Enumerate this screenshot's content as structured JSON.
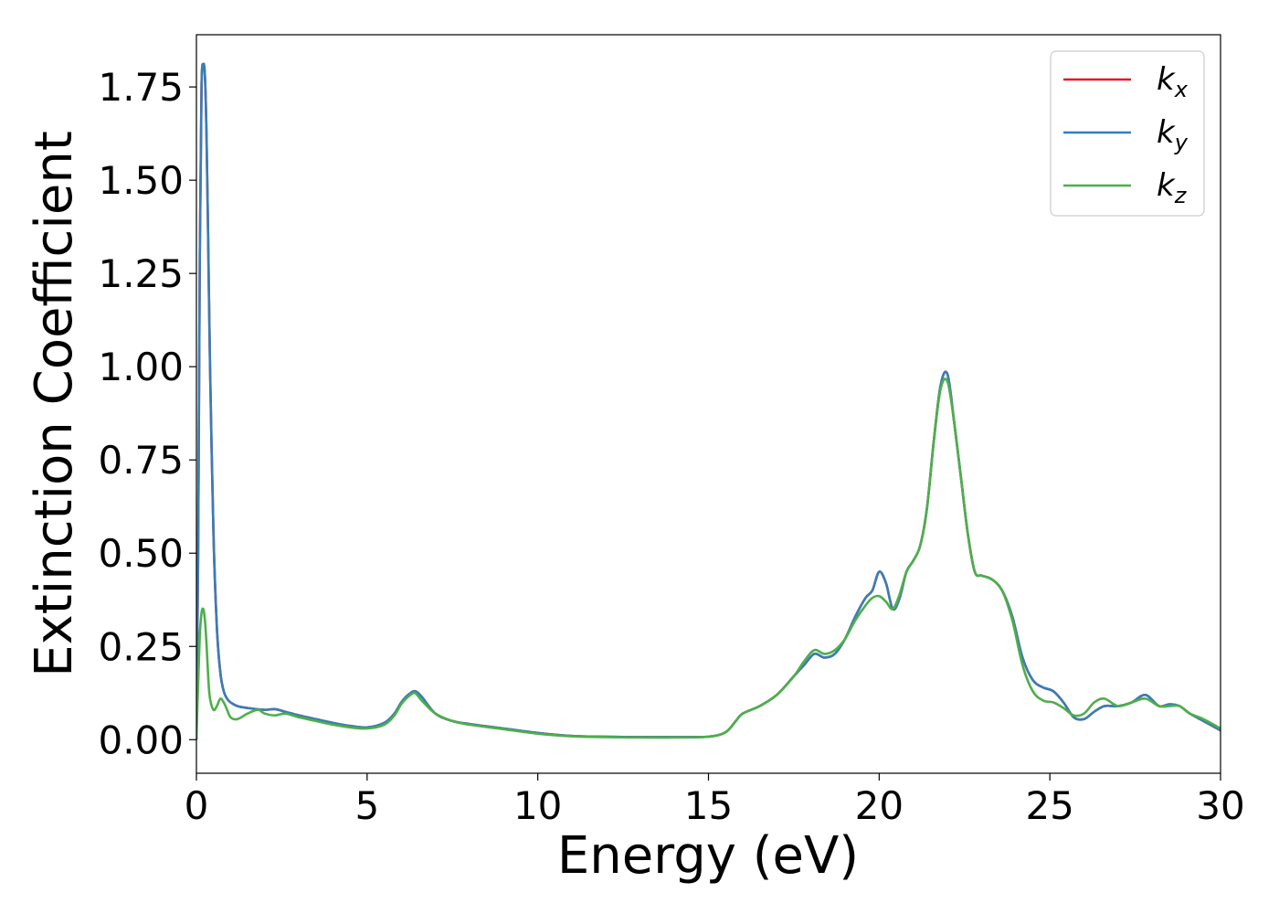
{
  "chart_data": {
    "type": "line",
    "title": "",
    "xlabel": "Energy (eV)",
    "ylabel": "Extinction Coefficient",
    "xlim": [
      0,
      30
    ],
    "ylim": [
      -0.09,
      1.89
    ],
    "xticks": [
      0,
      5,
      10,
      15,
      20,
      25,
      30
    ],
    "xtick_labels": [
      "0",
      "5",
      "10",
      "15",
      "20",
      "25",
      "30"
    ],
    "yticks": [
      0,
      0.25,
      0.5,
      0.75,
      1.0,
      1.25,
      1.5,
      1.75
    ],
    "ytick_labels": [
      "0.00",
      "0.25",
      "0.50",
      "0.75",
      "1.00",
      "1.25",
      "1.50",
      "1.75"
    ],
    "grid": false,
    "legend": {
      "placement": "top-right"
    },
    "series": [
      {
        "name": "k_x",
        "legend_base": "k",
        "legend_sub": "x",
        "color": "#e41a1c",
        "x": [
          0,
          0.05,
          0.1,
          0.15,
          0.2,
          0.25,
          0.3,
          0.35,
          0.4,
          0.5,
          0.6,
          0.7,
          0.8,
          0.9,
          1.0,
          1.2,
          1.5,
          2.0,
          2.3,
          2.6,
          3.0,
          3.5,
          4.0,
          4.5,
          5.0,
          5.5,
          5.8,
          6.0,
          6.2,
          6.4,
          6.6,
          7.0,
          7.5,
          8.0,
          9.0,
          10.0,
          11.0,
          12.0,
          13.0,
          14.0,
          15.0,
          15.5,
          15.8,
          16.0,
          16.5,
          17.0,
          17.5,
          17.8,
          18.1,
          18.4,
          18.7,
          19.0,
          19.3,
          19.6,
          19.8,
          20.0,
          20.2,
          20.4,
          20.6,
          20.8,
          21.0,
          21.2,
          21.4,
          21.6,
          21.8,
          22.0,
          22.2,
          22.4,
          22.6,
          22.8,
          23.0,
          23.3,
          23.6,
          23.9,
          24.2,
          24.5,
          24.8,
          25.1,
          25.4,
          25.7,
          26.0,
          26.3,
          26.6,
          27.0,
          27.4,
          27.8,
          28.2,
          28.5,
          28.8,
          29.1,
          29.5,
          30.0
        ],
        "y": [
          0.0,
          0.5,
          1.3,
          1.75,
          1.8,
          1.78,
          1.6,
          1.3,
          1.0,
          0.55,
          0.3,
          0.18,
          0.13,
          0.11,
          0.1,
          0.09,
          0.085,
          0.08,
          0.082,
          0.075,
          0.065,
          0.055,
          0.045,
          0.037,
          0.033,
          0.045,
          0.07,
          0.1,
          0.12,
          0.13,
          0.115,
          0.07,
          0.05,
          0.042,
          0.03,
          0.018,
          0.01,
          0.008,
          0.007,
          0.007,
          0.008,
          0.02,
          0.05,
          0.07,
          0.09,
          0.12,
          0.17,
          0.2,
          0.23,
          0.22,
          0.23,
          0.27,
          0.33,
          0.38,
          0.4,
          0.45,
          0.42,
          0.35,
          0.38,
          0.45,
          0.48,
          0.52,
          0.62,
          0.8,
          0.95,
          0.98,
          0.85,
          0.7,
          0.55,
          0.45,
          0.44,
          0.43,
          0.4,
          0.33,
          0.22,
          0.16,
          0.14,
          0.13,
          0.1,
          0.06,
          0.055,
          0.075,
          0.09,
          0.09,
          0.1,
          0.12,
          0.09,
          0.095,
          0.09,
          0.07,
          0.05,
          0.025
        ]
      },
      {
        "name": "k_y",
        "legend_base": "k",
        "legend_sub": "y",
        "color": "#377eb8",
        "x": [
          0,
          0.05,
          0.1,
          0.15,
          0.2,
          0.25,
          0.3,
          0.35,
          0.4,
          0.5,
          0.6,
          0.7,
          0.8,
          0.9,
          1.0,
          1.2,
          1.5,
          2.0,
          2.3,
          2.6,
          3.0,
          3.5,
          4.0,
          4.5,
          5.0,
          5.5,
          5.8,
          6.0,
          6.2,
          6.4,
          6.6,
          7.0,
          7.5,
          8.0,
          9.0,
          10.0,
          11.0,
          12.0,
          13.0,
          14.0,
          15.0,
          15.5,
          15.8,
          16.0,
          16.5,
          17.0,
          17.5,
          17.8,
          18.1,
          18.4,
          18.7,
          19.0,
          19.3,
          19.6,
          19.8,
          20.0,
          20.2,
          20.4,
          20.6,
          20.8,
          21.0,
          21.2,
          21.4,
          21.6,
          21.8,
          22.0,
          22.2,
          22.4,
          22.6,
          22.8,
          23.0,
          23.3,
          23.6,
          23.9,
          24.2,
          24.5,
          24.8,
          25.1,
          25.4,
          25.7,
          26.0,
          26.3,
          26.6,
          27.0,
          27.4,
          27.8,
          28.2,
          28.5,
          28.8,
          29.1,
          29.5,
          30.0
        ],
        "y": [
          0.0,
          0.5,
          1.3,
          1.75,
          1.81,
          1.78,
          1.6,
          1.3,
          1.0,
          0.55,
          0.3,
          0.18,
          0.13,
          0.11,
          0.1,
          0.09,
          0.085,
          0.08,
          0.082,
          0.075,
          0.065,
          0.055,
          0.045,
          0.037,
          0.033,
          0.045,
          0.07,
          0.1,
          0.12,
          0.13,
          0.115,
          0.07,
          0.05,
          0.042,
          0.03,
          0.018,
          0.01,
          0.008,
          0.007,
          0.007,
          0.008,
          0.02,
          0.05,
          0.07,
          0.09,
          0.12,
          0.17,
          0.2,
          0.23,
          0.22,
          0.23,
          0.27,
          0.33,
          0.38,
          0.4,
          0.45,
          0.42,
          0.35,
          0.38,
          0.45,
          0.48,
          0.52,
          0.62,
          0.8,
          0.95,
          0.98,
          0.85,
          0.7,
          0.55,
          0.45,
          0.44,
          0.43,
          0.4,
          0.33,
          0.22,
          0.16,
          0.14,
          0.13,
          0.1,
          0.06,
          0.055,
          0.075,
          0.09,
          0.09,
          0.1,
          0.12,
          0.09,
          0.095,
          0.09,
          0.07,
          0.05,
          0.025
        ]
      },
      {
        "name": "k_z",
        "legend_base": "k",
        "legend_sub": "z",
        "color": "#4daf4a",
        "x": [
          0,
          0.05,
          0.1,
          0.15,
          0.2,
          0.25,
          0.3,
          0.35,
          0.4,
          0.5,
          0.6,
          0.7,
          0.8,
          0.9,
          1.0,
          1.2,
          1.5,
          1.8,
          2.0,
          2.3,
          2.6,
          3.0,
          3.5,
          4.0,
          4.5,
          5.0,
          5.5,
          5.8,
          6.0,
          6.2,
          6.4,
          6.6,
          7.0,
          7.5,
          8.0,
          9.0,
          10.0,
          11.0,
          12.0,
          13.0,
          14.0,
          15.0,
          15.5,
          15.8,
          16.0,
          16.5,
          17.0,
          17.5,
          17.8,
          18.1,
          18.4,
          18.7,
          19.0,
          19.3,
          19.6,
          19.8,
          20.0,
          20.2,
          20.4,
          20.6,
          20.8,
          21.0,
          21.2,
          21.4,
          21.6,
          21.8,
          22.0,
          22.2,
          22.4,
          22.6,
          22.8,
          23.0,
          23.3,
          23.6,
          23.9,
          24.2,
          24.5,
          24.8,
          25.1,
          25.4,
          25.7,
          26.0,
          26.3,
          26.6,
          27.0,
          27.4,
          27.8,
          28.2,
          28.5,
          28.8,
          29.1,
          29.5,
          30.0
        ],
        "y": [
          0.0,
          0.15,
          0.28,
          0.34,
          0.35,
          0.32,
          0.25,
          0.16,
          0.11,
          0.08,
          0.09,
          0.11,
          0.1,
          0.08,
          0.06,
          0.055,
          0.07,
          0.08,
          0.07,
          0.065,
          0.07,
          0.06,
          0.05,
          0.04,
          0.033,
          0.03,
          0.04,
          0.065,
          0.095,
          0.115,
          0.125,
          0.105,
          0.07,
          0.05,
          0.04,
          0.028,
          0.016,
          0.009,
          0.007,
          0.006,
          0.006,
          0.008,
          0.02,
          0.05,
          0.07,
          0.09,
          0.12,
          0.17,
          0.21,
          0.24,
          0.23,
          0.24,
          0.27,
          0.32,
          0.36,
          0.38,
          0.385,
          0.37,
          0.35,
          0.39,
          0.45,
          0.48,
          0.52,
          0.62,
          0.8,
          0.94,
          0.96,
          0.85,
          0.7,
          0.55,
          0.45,
          0.44,
          0.43,
          0.4,
          0.32,
          0.2,
          0.13,
          0.105,
          0.1,
          0.085,
          0.065,
          0.07,
          0.1,
          0.11,
          0.09,
          0.1,
          0.11,
          0.09,
          0.09,
          0.09,
          0.07,
          0.055,
          0.03
        ]
      }
    ]
  }
}
